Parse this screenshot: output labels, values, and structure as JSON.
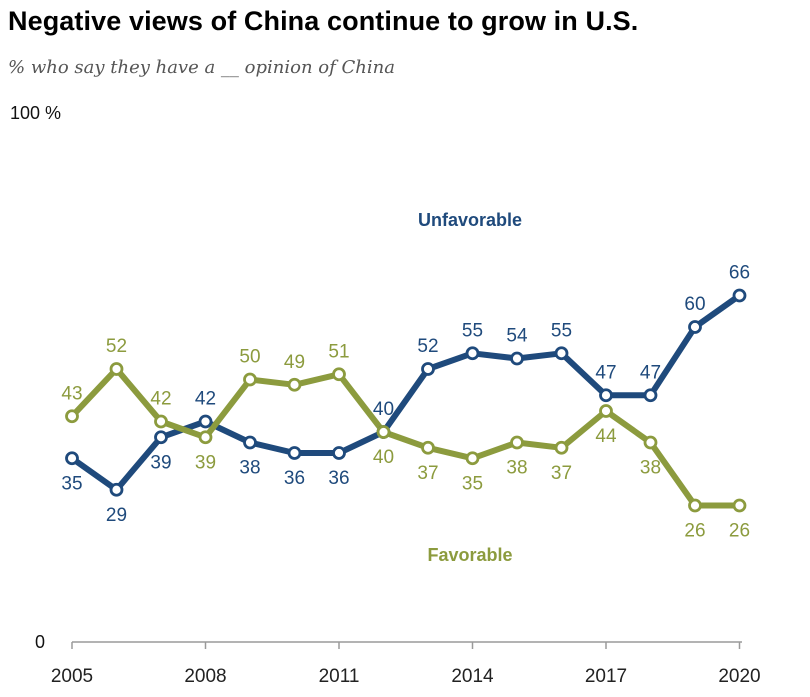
{
  "chart_data": {
    "type": "line",
    "title": "Negative views of China continue to grow in U.S.",
    "subtitle": "% who say they have a __ opinion of China",
    "x": [
      2005,
      2006,
      2007,
      2008,
      2009,
      2010,
      2011,
      2012,
      2013,
      2014,
      2015,
      2016,
      2017,
      2018,
      2019,
      2020
    ],
    "x_tick_labels": [
      "2005",
      "2008",
      "2011",
      "2014",
      "2017",
      "2020"
    ],
    "y_tick_labels": [
      "100 %",
      "0"
    ],
    "ylim": [
      0,
      100
    ],
    "grid": false,
    "series": [
      {
        "name": "Unfavorable",
        "color": "#1f4a7c",
        "values": [
          35,
          29,
          39,
          42,
          38,
          36,
          36,
          40,
          52,
          55,
          54,
          55,
          47,
          47,
          60,
          66
        ],
        "labels": [
          "35",
          "29",
          "39",
          "42",
          "38",
          "36",
          "36",
          "40",
          "52",
          "55",
          "54",
          "55",
          "47",
          "47",
          "60",
          "66"
        ]
      },
      {
        "name": "Favorable",
        "color": "#8c9b3e",
        "values": [
          43,
          52,
          42,
          39,
          50,
          49,
          51,
          40,
          37,
          35,
          38,
          37,
          44,
          38,
          26,
          26
        ],
        "labels": [
          "43",
          "52",
          "42",
          "39",
          "50",
          "49",
          "51",
          "40",
          "37",
          "35",
          "38",
          "37",
          "44",
          "38",
          "26",
          "26"
        ]
      }
    ]
  }
}
